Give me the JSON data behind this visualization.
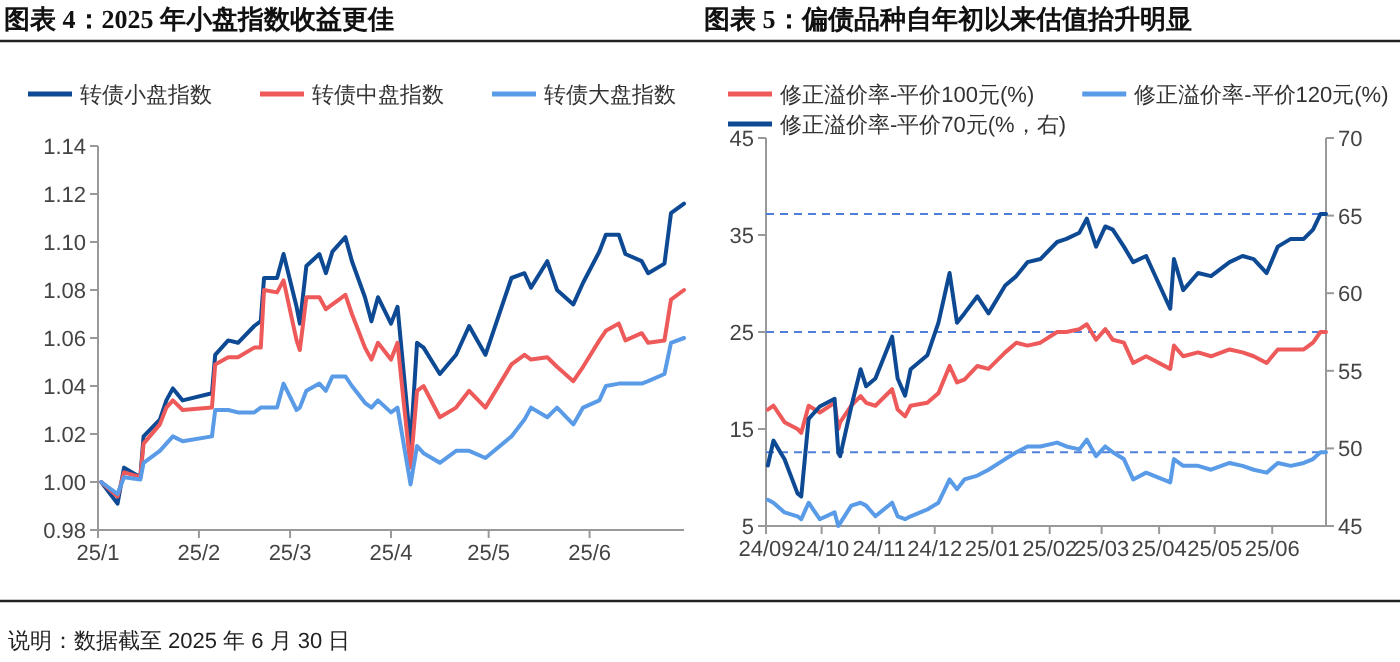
{
  "chart_data": [
    {
      "type": "line",
      "title": "图表 4：2025 年小盘指数收益更佳",
      "x": [
        "2025-01-02",
        "2025-01-07",
        "2025-01-09",
        "2025-01-14",
        "2025-01-15",
        "2025-01-20",
        "2025-01-22",
        "2025-01-24",
        "2025-01-27",
        "2025-02-05",
        "2025-02-06",
        "2025-02-10",
        "2025-02-13",
        "2025-02-18",
        "2025-02-20",
        "2025-02-21",
        "2025-02-25",
        "2025-02-27",
        "2025-03-03",
        "2025-03-04",
        "2025-03-06",
        "2025-03-10",
        "2025-03-12",
        "2025-03-14",
        "2025-03-18",
        "2025-03-20",
        "2025-03-24",
        "2025-03-26",
        "2025-03-28",
        "2025-04-01",
        "2025-04-03",
        "2025-04-07",
        "2025-04-09",
        "2025-04-11",
        "2025-04-16",
        "2025-04-21",
        "2025-04-25",
        "2025-04-30",
        "2025-05-08",
        "2025-05-12",
        "2025-05-14",
        "2025-05-19",
        "2025-05-22",
        "2025-05-27",
        "2025-05-30",
        "2025-06-04",
        "2025-06-06",
        "2025-06-10",
        "2025-06-12",
        "2025-06-17",
        "2025-06-19",
        "2025-06-24",
        "2025-06-26",
        "2025-06-30"
      ],
      "series": [
        {
          "name": "转债小盘指数",
          "color": "#0e4a94",
          "values": [
            1.0,
            0.991,
            1.006,
            1.002,
            1.019,
            1.026,
            1.034,
            1.039,
            1.034,
            1.037,
            1.053,
            1.059,
            1.058,
            1.065,
            1.067,
            1.085,
            1.085,
            1.095,
            1.073,
            1.066,
            1.09,
            1.095,
            1.087,
            1.096,
            1.102,
            1.092,
            1.077,
            1.067,
            1.077,
            1.066,
            1.073,
            1.015,
            1.058,
            1.056,
            1.045,
            1.053,
            1.065,
            1.053,
            1.085,
            1.087,
            1.081,
            1.092,
            1.08,
            1.074,
            1.083,
            1.096,
            1.103,
            1.103,
            1.095,
            1.092,
            1.087,
            1.091,
            1.112,
            1.116
          ]
        },
        {
          "name": "转债中盘指数",
          "color": "#ee5a5a",
          "values": [
            1.0,
            0.994,
            1.004,
            1.002,
            1.016,
            1.024,
            1.031,
            1.034,
            1.03,
            1.031,
            1.049,
            1.052,
            1.052,
            1.056,
            1.056,
            1.08,
            1.079,
            1.084,
            1.059,
            1.055,
            1.077,
            1.077,
            1.072,
            1.074,
            1.078,
            1.07,
            1.056,
            1.051,
            1.058,
            1.051,
            1.058,
            1.006,
            1.038,
            1.04,
            1.027,
            1.031,
            1.038,
            1.031,
            1.049,
            1.053,
            1.051,
            1.052,
            1.048,
            1.042,
            1.048,
            1.059,
            1.063,
            1.066,
            1.059,
            1.062,
            1.058,
            1.059,
            1.076,
            1.08
          ]
        },
        {
          "name": "转债大盘指数",
          "color": "#5a9be8",
          "values": [
            1.0,
            0.995,
            1.002,
            1.001,
            1.008,
            1.013,
            1.016,
            1.019,
            1.017,
            1.019,
            1.03,
            1.03,
            1.029,
            1.029,
            1.031,
            1.031,
            1.031,
            1.041,
            1.03,
            1.031,
            1.038,
            1.041,
            1.038,
            1.044,
            1.044,
            1.04,
            1.033,
            1.031,
            1.034,
            1.029,
            1.031,
            0.999,
            1.015,
            1.012,
            1.008,
            1.013,
            1.013,
            1.01,
            1.019,
            1.026,
            1.031,
            1.027,
            1.031,
            1.024,
            1.031,
            1.034,
            1.04,
            1.041,
            1.041,
            1.041,
            1.042,
            1.045,
            1.058,
            1.06
          ]
        }
      ],
      "xlim": [
        "2025-01-01",
        "2025-06-30"
      ],
      "xticks": [
        {
          "value": "2025-01-01",
          "label": "25/1"
        },
        {
          "value": "2025-02-01",
          "label": "25/2"
        },
        {
          "value": "2025-03-01",
          "label": "25/3"
        },
        {
          "value": "2025-04-01",
          "label": "25/4"
        },
        {
          "value": "2025-05-01",
          "label": "25/5"
        },
        {
          "value": "2025-06-01",
          "label": "25/6"
        }
      ],
      "ylim": [
        0.98,
        1.14
      ],
      "yticks": [
        {
          "value": 0.98,
          "label": "0.98"
        },
        {
          "value": 1.0,
          "label": "1.00"
        },
        {
          "value": 1.02,
          "label": "1.02"
        },
        {
          "value": 1.04,
          "label": "1.04"
        },
        {
          "value": 1.06,
          "label": "1.06"
        },
        {
          "value": 1.08,
          "label": "1.08"
        },
        {
          "value": 1.1,
          "label": "1.10"
        },
        {
          "value": 1.12,
          "label": "1.12"
        },
        {
          "value": 1.14,
          "label": "1.14"
        }
      ],
      "legend": "top",
      "annotations": [
        "说明：数据截至 2025 年 6 月 30 日"
      ]
    },
    {
      "type": "line",
      "title": "图表 5：偏债品种自年初以来估值抬升明显",
      "x": [
        "2024-09-02",
        "2024-09-05",
        "2024-09-11",
        "2024-09-18",
        "2024-09-20",
        "2024-09-24",
        "2024-09-30",
        "2024-10-08",
        "2024-10-10",
        "2024-10-11",
        "2024-10-17",
        "2024-10-22",
        "2024-10-25",
        "2024-10-30",
        "2024-11-08",
        "2024-11-11",
        "2024-11-15",
        "2024-11-18",
        "2024-11-27",
        "2024-12-03",
        "2024-12-09",
        "2024-12-13",
        "2024-12-17",
        "2024-12-24",
        "2024-12-30",
        "2025-01-08",
        "2025-01-14",
        "2025-01-20",
        "2025-01-27",
        "2025-02-05",
        "2025-02-10",
        "2025-02-17",
        "2025-02-21",
        "2025-02-26",
        "2025-03-03",
        "2025-03-07",
        "2025-03-13",
        "2025-03-18",
        "2025-03-25",
        "2025-04-07",
        "2025-04-09",
        "2025-04-14",
        "2025-04-22",
        "2025-04-29",
        "2025-05-09",
        "2025-05-16",
        "2025-05-22",
        "2025-05-29",
        "2025-06-04",
        "2025-06-11",
        "2025-06-18",
        "2025-06-23",
        "2025-06-27",
        "2025-06-30"
      ],
      "series": [
        {
          "name": "修正溢价率-平价100元(%)",
          "color": "#ee5a5a",
          "values": [
            17.0,
            17.4,
            15.7,
            15.0,
            14.6,
            17.4,
            16.7,
            17.7,
            15.0,
            15.7,
            17.4,
            18.4,
            17.7,
            17.4,
            19.1,
            17.0,
            16.3,
            17.4,
            17.7,
            18.7,
            21.5,
            19.8,
            20.1,
            21.5,
            21.2,
            22.9,
            23.9,
            23.6,
            23.9,
            25.0,
            25.0,
            25.3,
            25.8,
            24.2,
            25.3,
            24.2,
            23.9,
            21.8,
            22.5,
            21.2,
            23.6,
            22.5,
            22.9,
            22.5,
            23.2,
            22.9,
            22.5,
            21.8,
            23.2,
            23.2,
            23.2,
            23.9,
            25.0,
            25.0
          ]
        },
        {
          "name": "修正溢价率-平价120元(%)",
          "color": "#5a9be8",
          "values": [
            7.7,
            7.4,
            6.4,
            6.0,
            5.7,
            7.4,
            5.7,
            6.4,
            5.0,
            5.3,
            7.1,
            7.4,
            7.1,
            6.0,
            7.4,
            6.0,
            5.7,
            6.0,
            6.7,
            7.4,
            9.8,
            8.8,
            9.8,
            10.2,
            10.8,
            11.9,
            12.6,
            13.2,
            13.2,
            13.6,
            13.2,
            12.9,
            13.9,
            12.2,
            13.2,
            12.6,
            11.9,
            9.8,
            10.5,
            9.5,
            11.9,
            11.2,
            11.2,
            10.8,
            11.5,
            11.2,
            10.8,
            10.5,
            11.5,
            11.2,
            11.5,
            11.9,
            12.6,
            12.6
          ]
        },
        {
          "name": "修正溢价率-平价70元(%，右)",
          "color": "#0e4a94",
          "axis": "y2",
          "values": [
            48.9,
            50.5,
            49.3,
            47.1,
            46.9,
            51.9,
            52.7,
            53.2,
            49.7,
            49.5,
            52.7,
            55.1,
            54.0,
            54.5,
            57.2,
            54.5,
            53.4,
            55.1,
            56.0,
            58.1,
            61.3,
            58.1,
            58.7,
            59.8,
            58.7,
            60.5,
            61.1,
            62.0,
            62.2,
            63.3,
            63.5,
            63.9,
            64.8,
            63.0,
            64.3,
            64.1,
            63.0,
            62.0,
            62.4,
            59.0,
            62.2,
            60.2,
            61.3,
            61.1,
            62.0,
            62.4,
            62.2,
            61.3,
            63.0,
            63.5,
            63.5,
            64.1,
            65.1,
            65.1
          ]
        }
      ],
      "xlim": [
        "2024-09-01",
        "2025-06-30"
      ],
      "xticks": [
        {
          "value": "2024-09-01",
          "label": "24/09"
        },
        {
          "value": "2024-10-01",
          "label": "24/10"
        },
        {
          "value": "2024-11-01",
          "label": "24/11"
        },
        {
          "value": "2024-12-01",
          "label": "24/12"
        },
        {
          "value": "2025-01-01",
          "label": "25/01"
        },
        {
          "value": "2025-02-01",
          "label": "25/02"
        },
        {
          "value": "2025-03-01",
          "label": "25/03"
        },
        {
          "value": "2025-04-01",
          "label": "25/04"
        },
        {
          "value": "2025-05-01",
          "label": "25/05"
        },
        {
          "value": "2025-06-01",
          "label": "25/06"
        }
      ],
      "ylim": [
        5,
        45
      ],
      "yticks": [
        5,
        15,
        25,
        35,
        45
      ],
      "y2lim": [
        45,
        70
      ],
      "y2ticks": [
        45,
        50,
        55,
        60,
        65,
        70
      ],
      "ref_lines": [
        {
          "axis": "y",
          "value": 25,
          "color": "#4f7fd9",
          "line_style": "dashed"
        },
        {
          "axis": "y",
          "value": 12.6,
          "color": "#4f7fd9",
          "line_style": "dashed"
        },
        {
          "axis": "y2",
          "value": 65.1,
          "color": "#4f7fd9",
          "line_style": "dashed"
        }
      ],
      "legend": "top"
    }
  ]
}
